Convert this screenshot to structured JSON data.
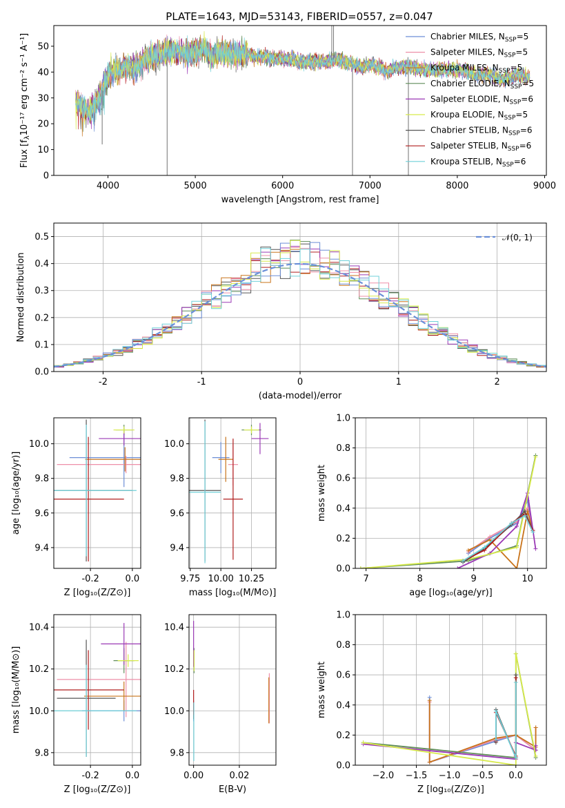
{
  "figure": {
    "title": "PLATE=1643, MJD=53143, FIBERID=0557, z=0.047"
  },
  "series_styles": [
    {
      "name": "Chabrier MILES",
      "nssp": "5",
      "color": "#6c8ed6"
    },
    {
      "name": "Salpeter MILES",
      "nssp": "5",
      "color": "#ee8fa8"
    },
    {
      "name": "Kroupa MILES",
      "nssp": "5",
      "color": "#c8731a"
    },
    {
      "name": "Chabrier ELODIE",
      "nssp": "5",
      "color": "#5f8c58"
    },
    {
      "name": "Salpeter ELODIE",
      "nssp": "6",
      "color": "#9a38b5"
    },
    {
      "name": "Kroupa ELODIE",
      "nssp": "5",
      "color": "#d7ea4a"
    },
    {
      "name": "Chabrier STELIB",
      "nssp": "6",
      "color": "#555555"
    },
    {
      "name": "Salpeter STELIB",
      "nssp": "6",
      "color": "#b01c1c"
    },
    {
      "name": "Kroupa STELIB",
      "nssp": "6",
      "color": "#6fd0d9"
    }
  ],
  "chart_data": [
    {
      "id": "spectrum",
      "type": "line",
      "xlabel": "wavelength [Angstrom, rest frame]",
      "ylabel_main": "Flux [f",
      "ylabel_units": "10⁻¹⁷ erg cm⁻² s⁻¹ A⁻¹]",
      "xlim": [
        3380,
        9020
      ],
      "ylim": [
        0,
        58
      ],
      "xticks": [
        4000,
        5000,
        6000,
        7000,
        8000,
        9000
      ],
      "yticks": [
        0,
        10,
        20,
        30,
        40,
        50
      ],
      "legend_suffix": ", N",
      "legend_sub": "SSP",
      "grid": false,
      "legend": "top-right",
      "x_range": [
        3630,
        8830
      ],
      "shape": [
        [
          3630,
          28
        ],
        [
          3700,
          27
        ],
        [
          3800,
          25
        ],
        [
          3900,
          30
        ],
        [
          4000,
          39
        ],
        [
          4100,
          41
        ],
        [
          4200,
          42
        ],
        [
          4300,
          41
        ],
        [
          4400,
          44
        ],
        [
          4500,
          46
        ],
        [
          4600,
          47
        ],
        [
          4700,
          48
        ],
        [
          4800,
          48
        ],
        [
          4900,
          47
        ],
        [
          5000,
          48
        ],
        [
          5100,
          49
        ],
        [
          5200,
          46
        ],
        [
          5300,
          48
        ],
        [
          5400,
          47
        ],
        [
          5500,
          47
        ],
        [
          5600,
          47
        ],
        [
          5700,
          46
        ],
        [
          5800,
          46
        ],
        [
          5900,
          45
        ],
        [
          6000,
          45
        ],
        [
          6100,
          45
        ],
        [
          6200,
          44
        ],
        [
          6300,
          44
        ],
        [
          6400,
          44
        ],
        [
          6500,
          44
        ],
        [
          6600,
          45
        ],
        [
          6700,
          44
        ],
        [
          6800,
          43
        ],
        [
          6900,
          42
        ],
        [
          7000,
          43
        ],
        [
          7100,
          42
        ],
        [
          7200,
          40
        ],
        [
          7300,
          42
        ],
        [
          7400,
          42
        ],
        [
          7500,
          42
        ],
        [
          7600,
          41
        ],
        [
          7700,
          41
        ],
        [
          7800,
          41
        ],
        [
          7900,
          41
        ],
        [
          8000,
          41
        ],
        [
          8100,
          40
        ],
        [
          8200,
          39
        ],
        [
          8300,
          39
        ],
        [
          8400,
          39
        ],
        [
          8500,
          37
        ],
        [
          8600,
          38
        ],
        [
          8700,
          39
        ],
        [
          8830,
          38
        ]
      ],
      "dips": [
        {
          "x": 3934,
          "y": 12
        },
        {
          "x": 4678,
          "y": 0
        },
        {
          "x": 6800,
          "y": 0
        },
        {
          "x": 7440,
          "y": 0
        }
      ],
      "peaks": [
        {
          "x": 6563,
          "y": 58
        },
        {
          "x": 6583,
          "y": 58
        }
      ]
    },
    {
      "id": "residuals",
      "type": "histogram",
      "xlabel": "(data-model)/error",
      "ylabel": "Normed distribution",
      "xlim": [
        -2.5,
        2.5
      ],
      "ylim": [
        0,
        0.55
      ],
      "xticks": [
        -2,
        -1,
        0,
        1,
        2
      ],
      "yticks": [
        0.0,
        0.1,
        0.2,
        0.3,
        0.4,
        0.5
      ],
      "grid": true,
      "legend": "top-right",
      "reference_label": "𝒩(0, 1)",
      "bin_width": 0.1
    },
    {
      "id": "age_vs_Z",
      "type": "errorbar",
      "xlabel": "Z [log₁₀(Z/Z⊙)]",
      "ylabel": "age  [log₁₀(age/yr)]",
      "xlim": [
        -0.375,
        0.04
      ],
      "ylim": [
        9.28,
        10.15
      ],
      "xticks": [
        -0.2,
        0.0
      ],
      "yticks": [
        9.4,
        9.6,
        9.8,
        10.0
      ],
      "grid": true,
      "points": [
        {
          "s": 0,
          "x": -0.04,
          "y": 9.92,
          "xe": 0.26,
          "ye": 0.17
        },
        {
          "s": 1,
          "x": -0.03,
          "y": 9.88,
          "xe": 0.33,
          "ye": 0.05
        },
        {
          "s": 2,
          "x": -0.035,
          "y": 9.91,
          "xe": 0.19,
          "ye": 0.07
        },
        {
          "s": 3,
          "x": -0.04,
          "y": 10.08,
          "xe": 0.04,
          "ye": 0.03
        },
        {
          "s": 4,
          "x": -0.04,
          "y": 10.03,
          "xe": 0.12,
          "ye": 0.04
        },
        {
          "s": 5,
          "x": -0.04,
          "y": 10.08,
          "xe": 0.05,
          "ye": 0.02
        },
        {
          "s": 6,
          "x": -0.22,
          "y": 9.73,
          "xe": 0.22,
          "ye": 0.41
        },
        {
          "s": 7,
          "x": -0.21,
          "y": 9.68,
          "xe": 0.17,
          "ye": 0.36
        },
        {
          "s": 8,
          "x": -0.22,
          "y": 9.73,
          "xe": 0.24,
          "ye": 0.38
        }
      ]
    },
    {
      "id": "age_vs_mass",
      "type": "errorbar",
      "xlabel": "mass [log₁₀(M/M⊙)]",
      "ylabel": "",
      "xlim": [
        9.74,
        10.45
      ],
      "ylim": [
        9.28,
        10.15
      ],
      "xticks": [
        9.75,
        10.0,
        10.25
      ],
      "xticklabels": [
        "9.75",
        "10.00",
        "10.25"
      ],
      "yticks": [
        9.4,
        9.6,
        9.8,
        10.0
      ],
      "grid": true,
      "points": [
        {
          "s": 0,
          "x": 10.0,
          "y": 9.92,
          "xe": 0.07,
          "ye": 0.09
        },
        {
          "s": 1,
          "x": 10.1,
          "y": 9.88,
          "xe": 0.04,
          "ye": 0.12
        },
        {
          "s": 2,
          "x": 10.04,
          "y": 9.91,
          "xe": 0.06,
          "ye": 0.13
        },
        {
          "s": 3,
          "x": 10.25,
          "y": 10.08,
          "xe": 0.08,
          "ye": 0.03
        },
        {
          "s": 4,
          "x": 10.32,
          "y": 10.03,
          "xe": 0.07,
          "ye": 0.09
        },
        {
          "s": 5,
          "x": 10.25,
          "y": 10.08,
          "xe": 0.06,
          "ye": 0.02
        },
        {
          "s": 6,
          "x": 9.87,
          "y": 9.73,
          "xe": 0.13,
          "ye": 0.41
        },
        {
          "s": 7,
          "x": 10.1,
          "y": 9.68,
          "xe": 0.08,
          "ye": 0.35
        },
        {
          "s": 8,
          "x": 9.87,
          "y": 9.72,
          "xe": 0.13,
          "ye": 0.41
        }
      ]
    },
    {
      "id": "mass_weight_vs_age",
      "type": "line",
      "xlabel": "age  [log₁₀(age/yr)]",
      "ylabel": "mass weight",
      "xlim": [
        6.8,
        10.35
      ],
      "ylim": [
        0,
        1.0
      ],
      "xticks": [
        7,
        8,
        9,
        10
      ],
      "yticks": [
        0.0,
        0.2,
        0.4,
        0.6,
        0.8,
        1.0
      ],
      "grid": true,
      "series": [
        {
          "s": 0,
          "x": [
            8.9,
            9.3,
            9.8,
            10.0,
            10.1
          ],
          "y": [
            0.1,
            0.2,
            0.3,
            0.45,
            0.25
          ]
        },
        {
          "s": 1,
          "x": [
            8.9,
            9.3,
            9.8,
            10.0,
            10.1
          ],
          "y": [
            0.11,
            0.21,
            0.31,
            0.4,
            0.26
          ]
        },
        {
          "s": 2,
          "x": [
            8.9,
            9.3,
            9.8,
            10.0,
            10.1
          ],
          "y": [
            0.12,
            0.19,
            0.0,
            0.38,
            0.25
          ]
        },
        {
          "s": 3,
          "x": [
            6.9,
            8.9,
            9.8,
            10.15
          ],
          "y": [
            0.0,
            0.05,
            0.15,
            0.75
          ]
        },
        {
          "s": 4,
          "x": [
            8.7,
            9.3,
            9.8,
            10.0,
            10.15
          ],
          "y": [
            0.0,
            0.1,
            0.28,
            0.5,
            0.13
          ]
        },
        {
          "s": 5,
          "x": [
            6.9,
            8.9,
            9.8,
            10.15
          ],
          "y": [
            0.0,
            0.06,
            0.14,
            0.74
          ]
        },
        {
          "s": 6,
          "x": [
            8.8,
            9.2,
            9.7,
            9.95,
            10.1
          ],
          "y": [
            0.04,
            0.13,
            0.29,
            0.38,
            0.25
          ]
        },
        {
          "s": 7,
          "x": [
            8.8,
            9.2,
            9.7,
            9.95,
            10.1
          ],
          "y": [
            0.05,
            0.12,
            0.3,
            0.36,
            0.25
          ]
        },
        {
          "s": 8,
          "x": [
            8.8,
            9.2,
            9.7,
            9.95,
            10.1
          ],
          "y": [
            0.05,
            0.14,
            0.3,
            0.35,
            0.24
          ]
        }
      ]
    },
    {
      "id": "mass_vs_Z",
      "type": "errorbar",
      "xlabel": "Z [log₁₀(Z/Z⊙)]",
      "ylabel": "mass [log₁₀(M/M⊙)]",
      "xlim": [
        -0.375,
        0.04
      ],
      "ylim": [
        9.74,
        10.46
      ],
      "xticks": [
        -0.2,
        0.0
      ],
      "yticks": [
        9.8,
        10.0,
        10.2,
        10.4
      ],
      "grid": true,
      "points": [
        {
          "s": 0,
          "x": -0.04,
          "y": 10.0,
          "xe": 0.2,
          "ye": 0.05
        },
        {
          "s": 1,
          "x": -0.03,
          "y": 10.15,
          "xe": 0.33,
          "ye": 0.18
        },
        {
          "s": 2,
          "x": -0.04,
          "y": 10.07,
          "xe": 0.19,
          "ye": 0.07
        },
        {
          "s": 3,
          "x": -0.04,
          "y": 10.24,
          "xe": 0.05,
          "ye": 0.06
        },
        {
          "s": 4,
          "x": -0.04,
          "y": 10.32,
          "xe": 0.11,
          "ye": 0.1
        },
        {
          "s": 5,
          "x": -0.02,
          "y": 10.24,
          "xe": 0.05,
          "ye": 0.03
        },
        {
          "s": 6,
          "x": -0.22,
          "y": 10.06,
          "xe": 0.14,
          "ye": 0.28
        },
        {
          "s": 7,
          "x": -0.21,
          "y": 10.1,
          "xe": 0.17,
          "ye": 0.19
        },
        {
          "s": 8,
          "x": -0.22,
          "y": 10.0,
          "xe": 0.24,
          "ye": 0.22
        }
      ]
    },
    {
      "id": "mass_vs_ebv",
      "type": "errorbar",
      "xlabel": "E(B-V)",
      "ylabel": "",
      "xlim": [
        -0.002,
        0.036
      ],
      "ylim": [
        9.74,
        10.46
      ],
      "xticks": [
        0.0,
        0.02
      ],
      "xticklabels": [
        "0.00",
        "0.02"
      ],
      "yticks": [
        9.8,
        10.0,
        10.2,
        10.4
      ],
      "grid": true,
      "points": [
        {
          "s": 0,
          "x": 0.0,
          "y": 10.0,
          "xe": 0.0,
          "ye": 0.05
        },
        {
          "s": 1,
          "x": 0.0331,
          "y": 10.06,
          "xe": 0.0,
          "ye": 0.12
        },
        {
          "s": 2,
          "x": 0.0329,
          "y": 10.05,
          "xe": 0.0,
          "ye": 0.11
        },
        {
          "s": 3,
          "x": 0.0002,
          "y": 10.24,
          "xe": 0.0,
          "ye": 0.06
        },
        {
          "s": 4,
          "x": 0.0,
          "y": 10.32,
          "xe": 0.0,
          "ye": 0.11
        },
        {
          "s": 5,
          "x": 0.0002,
          "y": 10.24,
          "xe": 0.0,
          "ye": 0.05
        },
        {
          "s": 6,
          "x": 0.0,
          "y": 10.0,
          "xe": 0.0,
          "ye": 0.04
        },
        {
          "s": 7,
          "x": 0.0,
          "y": 10.04,
          "xe": 0.0,
          "ye": 0.06
        },
        {
          "s": 8,
          "x": 0.0001,
          "y": 9.9,
          "xe": 0.0,
          "ye": 0.14
        }
      ]
    },
    {
      "id": "mass_weight_vs_Z",
      "type": "line",
      "xlabel": "Z [log₁₀(Z/Z⊙)]",
      "ylabel": "mass weight",
      "xlim": [
        -2.42,
        0.46
      ],
      "ylim": [
        0,
        1.0
      ],
      "xticks": [
        -2.0,
        -1.5,
        -1.0,
        -0.5,
        0.0
      ],
      "xticklabels": [
        "−2.0",
        "−1.5",
        "−1.0",
        "−0.5",
        "0.0"
      ],
      "yticks": [
        0.0,
        0.2,
        0.4,
        0.6,
        0.8,
        1.0
      ],
      "grid": true,
      "series": [
        {
          "s": 0,
          "x": [
            -1.3,
            -1.3,
            -0.3,
            0.0,
            0.3,
            0.3
          ],
          "y": [
            0.45,
            0.02,
            0.16,
            0.2,
            0.1,
            0.25
          ]
        },
        {
          "s": 1,
          "x": [
            -1.3,
            -1.3,
            -0.3,
            0.0,
            0.3,
            0.3
          ],
          "y": [
            0.42,
            0.02,
            0.17,
            0.2,
            0.1,
            0.25
          ]
        },
        {
          "s": 2,
          "x": [
            -1.3,
            -1.3,
            -0.3,
            0.0,
            0.3,
            0.3
          ],
          "y": [
            0.43,
            0.02,
            0.18,
            0.2,
            0.12,
            0.25
          ]
        },
        {
          "s": 3,
          "x": [
            -2.3,
            0.0,
            0.0,
            0.3
          ],
          "y": [
            0.15,
            0.05,
            0.74,
            0.05
          ]
        },
        {
          "s": 4,
          "x": [
            -2.3,
            0.0,
            0.0,
            0.3,
            0.3
          ],
          "y": [
            0.14,
            0.04,
            0.15,
            0.1,
            0.13
          ]
        },
        {
          "s": 5,
          "x": [
            -2.3,
            0.0,
            0.0,
            0.3
          ],
          "y": [
            0.15,
            0.0,
            0.74,
            0.06
          ]
        },
        {
          "s": 6,
          "x": [
            -0.3,
            -0.3,
            0.0,
            0.0
          ],
          "y": [
            0.15,
            0.37,
            0.05,
            0.6
          ]
        },
        {
          "s": 7,
          "x": [
            -0.3,
            -0.3,
            0.0,
            0.0
          ],
          "y": [
            0.16,
            0.35,
            0.06,
            0.58
          ]
        },
        {
          "s": 8,
          "x": [
            -0.3,
            -0.3,
            0.0,
            0.0
          ],
          "y": [
            0.17,
            0.36,
            0.05,
            0.55
          ]
        }
      ]
    }
  ]
}
